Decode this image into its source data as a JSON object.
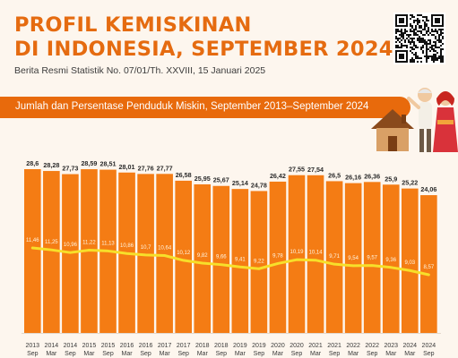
{
  "header": {
    "title_line1": "PROFIL KEMISKINAN",
    "title_line2": "DI INDONESIA, SEPTEMBER 2024",
    "subtitle": "Berita Resmi Statistik No. 07/01/Th. XXVIII, 15 Januari 2025"
  },
  "banner": {
    "text": "Jumlah dan Persentase Penduduk Miskin, September 2013–September 2024"
  },
  "colors": {
    "accent": "#e56b10",
    "bar": "#f47c14",
    "line": "#f7df2a",
    "banner": "#e86a0c",
    "background": "#fdf6ee"
  },
  "chart_data": {
    "type": "bar",
    "title": "Jumlah dan Persentase Penduduk Miskin, September 2013–September 2024",
    "categories": [
      [
        "2013",
        "Sep"
      ],
      [
        "2014",
        "Mar"
      ],
      [
        "2014",
        "Sep"
      ],
      [
        "2015",
        "Mar"
      ],
      [
        "2015",
        "Sep"
      ],
      [
        "2016",
        "Mar"
      ],
      [
        "2016",
        "Sep"
      ],
      [
        "2017",
        "Mar"
      ],
      [
        "2017",
        "Sep"
      ],
      [
        "2018",
        "Mar"
      ],
      [
        "2018",
        "Sep"
      ],
      [
        "2019",
        "Mar"
      ],
      [
        "2019",
        "Sep"
      ],
      [
        "2020",
        "Mar"
      ],
      [
        "2020",
        "Sep"
      ],
      [
        "2021",
        "Mar"
      ],
      [
        "2021",
        "Sep"
      ],
      [
        "2022",
        "Mar"
      ],
      [
        "2022",
        "Sep"
      ],
      [
        "2023",
        "Mar"
      ],
      [
        "2024",
        "Mar"
      ],
      [
        "2024",
        "Sep"
      ]
    ],
    "series": [
      {
        "values": [
          28.6,
          28.28,
          27.73,
          28.59,
          28.51,
          28.01,
          27.76,
          27.77,
          26.58,
          25.95,
          25.67,
          25.14,
          24.78,
          26.42,
          27.55,
          27.54,
          26.5,
          26.16,
          26.36,
          25.9,
          25.22,
          24.06
        ],
        "labels": [
          "28,6",
          "28,28",
          "27,73",
          "28,59",
          "28,51",
          "28,01",
          "27,76",
          "27,77",
          "26,58",
          "25,95",
          "25,67",
          "25,14",
          "24,78",
          "26,42",
          "27,55",
          "27,54",
          "26,5",
          "26,16",
          "26,36",
          "25,9",
          "25,22",
          "24,06"
        ]
      },
      {
        "type": "line",
        "values": [
          11.46,
          11.25,
          10.96,
          11.22,
          11.13,
          10.86,
          10.7,
          10.64,
          10.12,
          9.82,
          9.66,
          9.41,
          9.22,
          9.78,
          10.19,
          10.14,
          9.71,
          9.54,
          9.57,
          9.36,
          9.03,
          8.57
        ],
        "labels": [
          "11,46",
          "11,25",
          "10,96",
          "11,22",
          "11,13",
          "10,86",
          "10,7",
          "10,64",
          "10,12",
          "9,82",
          "9,66",
          "9,41",
          "9,22",
          "9,78",
          "10,19",
          "10,14",
          "9,71",
          "9,54",
          "9,57",
          "9,36",
          "9,03",
          "8,57"
        ]
      }
    ],
    "grid": false
  }
}
